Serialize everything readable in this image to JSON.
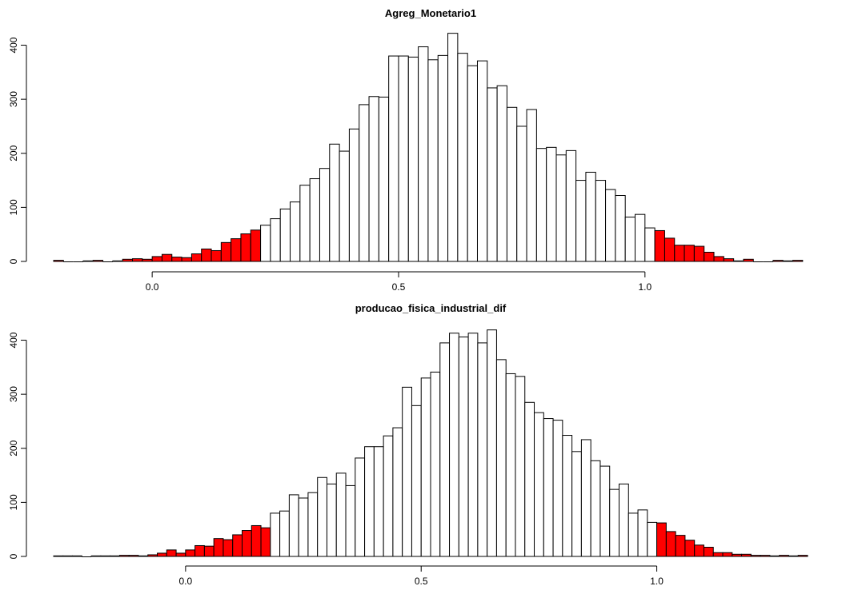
{
  "colors": {
    "tail": "#ff0000",
    "body": "#ffffff",
    "stroke": "#000000"
  },
  "chart_data": [
    {
      "type": "bar",
      "title": "Agreg_Monetario1",
      "xlabel": "",
      "ylabel": "",
      "xlim": [
        -0.2,
        1.33
      ],
      "ylim": [
        0,
        420
      ],
      "bin_width": 0.02,
      "x_ticks": [
        0.0,
        0.5,
        1.0
      ],
      "x_tick_labels": [
        "0.0",
        "0.5",
        "1.0"
      ],
      "y_ticks": [
        0,
        100,
        200,
        300,
        400
      ],
      "y_tick_labels": [
        "0",
        "100",
        "200",
        "300",
        "400"
      ],
      "tail_bounds": [
        0.22,
        1.02
      ],
      "bin_starts": [
        -0.2,
        -0.18,
        -0.16,
        -0.14,
        -0.12,
        -0.1,
        -0.08,
        -0.06,
        -0.04,
        -0.02,
        0.0,
        0.02,
        0.04,
        0.06,
        0.08,
        0.1,
        0.12,
        0.14,
        0.16,
        0.18,
        0.2,
        0.22,
        0.24,
        0.26,
        0.28,
        0.3,
        0.32,
        0.34,
        0.36,
        0.38,
        0.4,
        0.42,
        0.44,
        0.46,
        0.48,
        0.5,
        0.52,
        0.54,
        0.56,
        0.58,
        0.6,
        0.62,
        0.64,
        0.66,
        0.68,
        0.7,
        0.72,
        0.74,
        0.76,
        0.78,
        0.8,
        0.82,
        0.84,
        0.86,
        0.88,
        0.9,
        0.92,
        0.94,
        0.96,
        0.98,
        1.0,
        1.02,
        1.04,
        1.06,
        1.08,
        1.1,
        1.12,
        1.14,
        1.16,
        1.18,
        1.2,
        1.22,
        1.24,
        1.26,
        1.28,
        1.3
      ],
      "counts": [
        2,
        0,
        0,
        1,
        2,
        0,
        1,
        4,
        5,
        4,
        9,
        13,
        8,
        7,
        14,
        23,
        20,
        35,
        42,
        51,
        58,
        67,
        79,
        97,
        110,
        141,
        153,
        172,
        217,
        204,
        245,
        290,
        305,
        304,
        380,
        380,
        378,
        397,
        373,
        381,
        422,
        385,
        362,
        371,
        321,
        325,
        285,
        250,
        281,
        209,
        211,
        197,
        205,
        150,
        165,
        150,
        133,
        122,
        82,
        87,
        62,
        57,
        43,
        30,
        30,
        28,
        17,
        9,
        5,
        1,
        4,
        0,
        0,
        2,
        1,
        2
      ]
    },
    {
      "type": "bar",
      "title": "producao_fisica_industrial_dif",
      "xlabel": "",
      "ylabel": "",
      "xlim": [
        -0.28,
        1.32
      ],
      "ylim": [
        0,
        420
      ],
      "bin_width": 0.02,
      "x_ticks": [
        0.0,
        0.5,
        1.0
      ],
      "x_tick_labels": [
        "0.0",
        "0.5",
        "1.0"
      ],
      "y_ticks": [
        0,
        100,
        200,
        300,
        400
      ],
      "y_tick_labels": [
        "0",
        "100",
        "200",
        "300",
        "400"
      ],
      "tail_bounds": [
        0.18,
        1.0
      ],
      "bin_starts": [
        -0.28,
        -0.26,
        -0.24,
        -0.22,
        -0.2,
        -0.18,
        -0.16,
        -0.14,
        -0.12,
        -0.1,
        -0.08,
        -0.06,
        -0.04,
        -0.02,
        0.0,
        0.02,
        0.04,
        0.06,
        0.08,
        0.1,
        0.12,
        0.14,
        0.16,
        0.18,
        0.2,
        0.22,
        0.24,
        0.26,
        0.28,
        0.3,
        0.32,
        0.34,
        0.36,
        0.38,
        0.4,
        0.42,
        0.44,
        0.46,
        0.48,
        0.5,
        0.52,
        0.54,
        0.56,
        0.58,
        0.6,
        0.62,
        0.64,
        0.66,
        0.68,
        0.7,
        0.72,
        0.74,
        0.76,
        0.78,
        0.8,
        0.82,
        0.84,
        0.86,
        0.88,
        0.9,
        0.92,
        0.94,
        0.96,
        0.98,
        1.0,
        1.02,
        1.04,
        1.06,
        1.08,
        1.1,
        1.12,
        1.14,
        1.16,
        1.18,
        1.2,
        1.22,
        1.24,
        1.26,
        1.28,
        1.3
      ],
      "counts": [
        1,
        1,
        1,
        0,
        1,
        1,
        1,
        2,
        2,
        1,
        3,
        6,
        12,
        6,
        12,
        20,
        19,
        33,
        31,
        40,
        48,
        57,
        53,
        80,
        84,
        114,
        108,
        118,
        146,
        134,
        154,
        131,
        182,
        203,
        203,
        223,
        238,
        313,
        279,
        330,
        341,
        395,
        413,
        406,
        413,
        395,
        419,
        364,
        338,
        333,
        285,
        266,
        255,
        252,
        224,
        194,
        216,
        177,
        167,
        124,
        134,
        80,
        86,
        63,
        62,
        46,
        39,
        30,
        21,
        17,
        7,
        7,
        4,
        4,
        2,
        2,
        1,
        2,
        1,
        2
      ]
    }
  ]
}
